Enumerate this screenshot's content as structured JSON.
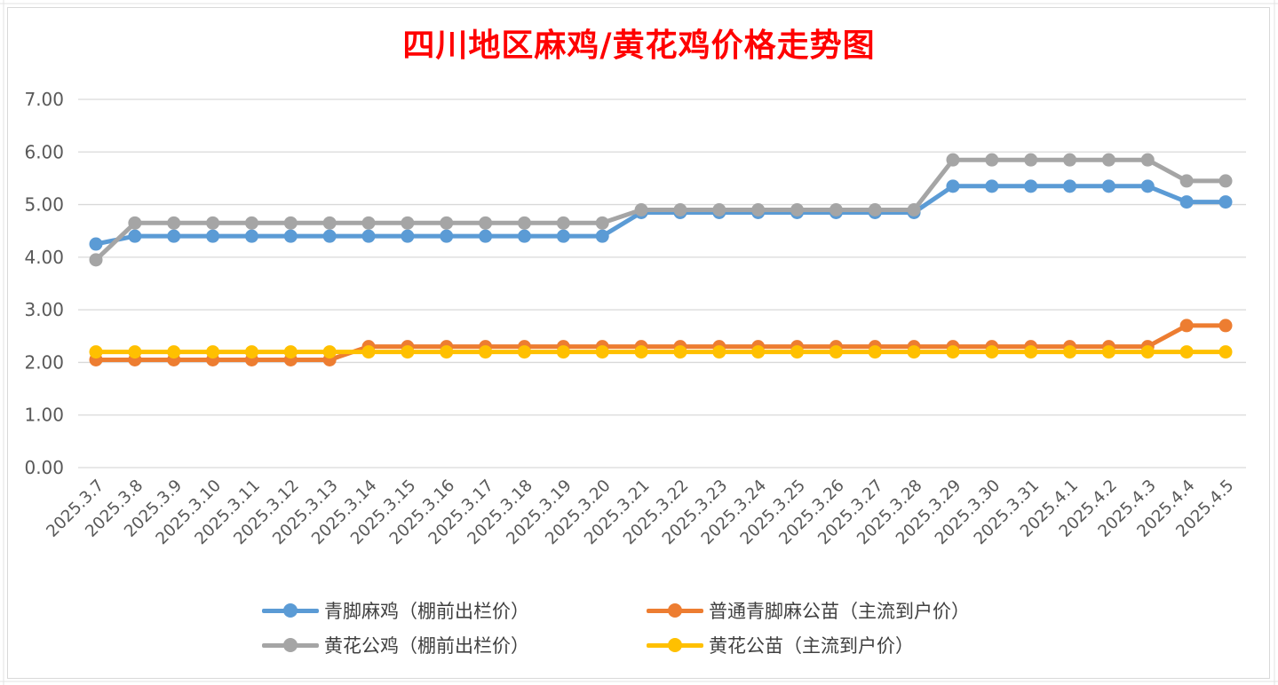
{
  "chart_data": {
    "type": "line",
    "title": "四川地区麻鸡/黄花鸡价格走势图",
    "xlabel": "",
    "ylabel": "",
    "ylim": [
      0,
      7
    ],
    "yticks": [
      "0.00",
      "1.00",
      "2.00",
      "3.00",
      "4.00",
      "5.00",
      "6.00",
      "7.00"
    ],
    "grid": true,
    "legend_position": "bottom",
    "categories": [
      "2025.3.7",
      "2025.3.8",
      "2025.3.9",
      "2025.3.10",
      "2025.3.11",
      "2025.3.12",
      "2025.3.13",
      "2025.3.14",
      "2025.3.15",
      "2025.3.16",
      "2025.3.17",
      "2025.3.18",
      "2025.3.19",
      "2025.3.20",
      "2025.3.21",
      "2025.3.22",
      "2025.3.23",
      "2025.3.24",
      "2025.3.25",
      "2025.3.26",
      "2025.3.27",
      "2025.3.28",
      "2025.3.29",
      "2025.3.30",
      "2025.3.31",
      "2025.4.1",
      "2025.4.2",
      "2025.4.3",
      "2025.4.4",
      "2025.4.5"
    ],
    "series": [
      {
        "name": "青脚麻鸡（棚前出栏价）",
        "color": "#5b9bd5",
        "values": [
          4.25,
          4.4,
          4.4,
          4.4,
          4.4,
          4.4,
          4.4,
          4.4,
          4.4,
          4.4,
          4.4,
          4.4,
          4.4,
          4.4,
          4.85,
          4.85,
          4.85,
          4.85,
          4.85,
          4.85,
          4.85,
          4.85,
          5.35,
          5.35,
          5.35,
          5.35,
          5.35,
          5.35,
          5.05,
          5.05
        ]
      },
      {
        "name": "普通青脚麻公苗（主流到户价）",
        "color": "#ed7d31",
        "values": [
          2.05,
          2.05,
          2.05,
          2.05,
          2.05,
          2.05,
          2.05,
          2.3,
          2.3,
          2.3,
          2.3,
          2.3,
          2.3,
          2.3,
          2.3,
          2.3,
          2.3,
          2.3,
          2.3,
          2.3,
          2.3,
          2.3,
          2.3,
          2.3,
          2.3,
          2.3,
          2.3,
          2.3,
          2.7,
          2.7
        ]
      },
      {
        "name": "黄花公鸡（棚前出栏价）",
        "color": "#a5a5a5",
        "values": [
          3.95,
          4.65,
          4.65,
          4.65,
          4.65,
          4.65,
          4.65,
          4.65,
          4.65,
          4.65,
          4.65,
          4.65,
          4.65,
          4.65,
          4.9,
          4.9,
          4.9,
          4.9,
          4.9,
          4.9,
          4.9,
          4.9,
          5.85,
          5.85,
          5.85,
          5.85,
          5.85,
          5.85,
          5.45,
          5.45
        ]
      },
      {
        "name": "黄花公苗（主流到户价）",
        "color": "#ffc000",
        "values": [
          2.2,
          2.2,
          2.2,
          2.2,
          2.2,
          2.2,
          2.2,
          2.2,
          2.2,
          2.2,
          2.2,
          2.2,
          2.2,
          2.2,
          2.2,
          2.2,
          2.2,
          2.2,
          2.2,
          2.2,
          2.2,
          2.2,
          2.2,
          2.2,
          2.2,
          2.2,
          2.2,
          2.2,
          2.2,
          2.2
        ]
      }
    ]
  }
}
